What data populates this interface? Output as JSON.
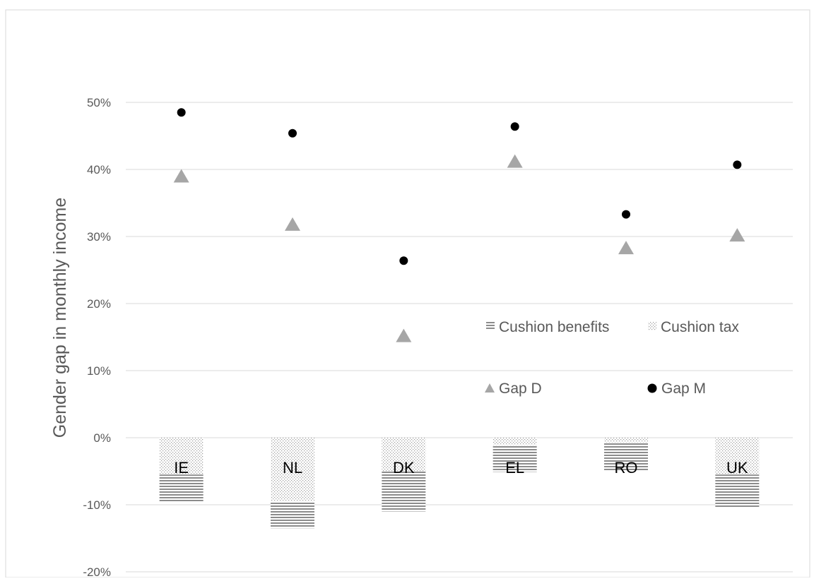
{
  "chart_data": {
    "type": "bar",
    "ylabel": "Gender gap in monthly income",
    "ylim": [
      -0.2,
      0.5
    ],
    "yticks": [
      -0.2,
      -0.1,
      0,
      0.1,
      0.2,
      0.3,
      0.4,
      0.5
    ],
    "ytick_labels": [
      "-20%",
      "-10%",
      "0%",
      "10%",
      "20%",
      "30%",
      "40%",
      "50%"
    ],
    "grid": true,
    "legend_position": "center-right",
    "categories": [
      "IE",
      "NL",
      "DK",
      "EL",
      "RO",
      "UK"
    ],
    "stacked_bars": [
      {
        "name": "Cushion tax",
        "style": "dotted",
        "values": [
          -0.055,
          -0.095,
          -0.05,
          -0.011,
          -0.007,
          -0.055
        ]
      },
      {
        "name": "Cushion benefits",
        "style": "horizontal-lines",
        "values": [
          -0.04,
          -0.04,
          -0.06,
          -0.04,
          -0.043,
          -0.05
        ]
      }
    ],
    "markers": [
      {
        "name": "Gap D",
        "marker": "triangle",
        "color": "#a6a6a6",
        "values": [
          0.39,
          0.318,
          0.152,
          0.412,
          0.283,
          0.302
        ]
      },
      {
        "name": "Gap M",
        "marker": "circle",
        "color": "#000000",
        "values": [
          0.485,
          0.454,
          0.264,
          0.464,
          0.333,
          0.407
        ]
      }
    ]
  }
}
